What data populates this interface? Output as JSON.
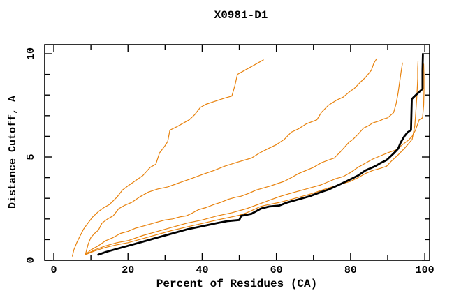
{
  "chart_data": {
    "type": "line",
    "title": "X0981-D1",
    "xlabel": "Percent of Residues (CA)",
    "ylabel": "Distance Cutoff, A",
    "xlim": [
      -2.45,
      101.3
    ],
    "ylim": [
      0,
      10.44
    ],
    "x_major_ticks": [
      0,
      20,
      40,
      60,
      80,
      100
    ],
    "x_minor_ticks": [
      10,
      30,
      50,
      70,
      90
    ],
    "y_major_ticks": [
      0,
      5,
      10
    ],
    "y_minor_ticks": [
      1,
      2,
      3,
      4,
      6,
      7,
      8,
      9
    ],
    "grid": false,
    "legend": "none",
    "background_color": "#ffffff",
    "axis_color": "#000000",
    "orange_color": "#e8820d",
    "black_color": "#000000",
    "series": [
      {
        "name": "orange-curve-1",
        "color": "#e8820d",
        "width": 1.2,
        "points": [
          [
            5,
            0.2
          ],
          [
            5.4,
            0.5
          ],
          [
            6.2,
            0.85
          ],
          [
            7,
            1.15
          ],
          [
            8,
            1.5
          ],
          [
            9,
            1.75
          ],
          [
            10.5,
            2.1
          ],
          [
            12,
            2.35
          ],
          [
            13.5,
            2.55
          ],
          [
            15,
            2.7
          ],
          [
            17,
            3.05
          ],
          [
            18.5,
            3.4
          ],
          [
            20,
            3.6
          ],
          [
            22,
            3.85
          ],
          [
            24,
            4.1
          ],
          [
            26,
            4.5
          ],
          [
            27.5,
            4.65
          ],
          [
            28.5,
            5.2
          ],
          [
            30,
            5.55
          ],
          [
            30.7,
            5.75
          ],
          [
            31.3,
            6.3
          ],
          [
            33,
            6.45
          ],
          [
            34.5,
            6.6
          ],
          [
            36.5,
            6.8
          ],
          [
            38,
            7.05
          ],
          [
            39.5,
            7.4
          ],
          [
            41,
            7.55
          ],
          [
            43.5,
            7.7
          ],
          [
            46,
            7.85
          ],
          [
            48,
            7.95
          ],
          [
            48.8,
            8.45
          ],
          [
            49.5,
            9.0
          ],
          [
            51.5,
            9.2
          ],
          [
            53.5,
            9.4
          ],
          [
            55,
            9.55
          ],
          [
            56.5,
            9.7
          ]
        ]
      },
      {
        "name": "orange-curve-2",
        "color": "#e8820d",
        "width": 1.2,
        "points": [
          [
            8.5,
            0.27
          ],
          [
            9.3,
            0.8
          ],
          [
            10,
            1.1
          ],
          [
            11,
            1.3
          ],
          [
            12,
            1.45
          ],
          [
            13,
            1.8
          ],
          [
            14.5,
            2.0
          ],
          [
            16,
            2.15
          ],
          [
            17.5,
            2.5
          ],
          [
            19,
            2.65
          ],
          [
            21,
            2.8
          ],
          [
            23,
            3.05
          ],
          [
            25.5,
            3.3
          ],
          [
            28,
            3.45
          ],
          [
            30.7,
            3.55
          ],
          [
            33,
            3.7
          ],
          [
            37,
            3.95
          ],
          [
            40,
            4.15
          ],
          [
            43.2,
            4.35
          ],
          [
            46,
            4.55
          ],
          [
            49.5,
            4.75
          ],
          [
            53.3,
            4.95
          ],
          [
            55.5,
            5.2
          ],
          [
            57.7,
            5.4
          ],
          [
            60,
            5.6
          ],
          [
            62.1,
            5.85
          ],
          [
            64,
            6.2
          ],
          [
            65.8,
            6.35
          ],
          [
            68,
            6.6
          ],
          [
            70.9,
            6.8
          ],
          [
            72.1,
            7.15
          ],
          [
            74,
            7.5
          ],
          [
            76.2,
            7.75
          ],
          [
            78,
            7.9
          ],
          [
            80,
            8.2
          ],
          [
            80.9,
            8.3
          ],
          [
            82.5,
            8.6
          ],
          [
            84,
            8.85
          ],
          [
            85.6,
            9.2
          ],
          [
            86.3,
            9.55
          ],
          [
            87,
            9.75
          ]
        ]
      },
      {
        "name": "orange-curve-3",
        "color": "#e8820d",
        "width": 1.2,
        "points": [
          [
            8.5,
            0.27
          ],
          [
            10,
            0.5
          ],
          [
            12,
            0.7
          ],
          [
            14,
            0.95
          ],
          [
            16,
            1.1
          ],
          [
            18,
            1.3
          ],
          [
            20,
            1.4
          ],
          [
            22,
            1.55
          ],
          [
            24,
            1.65
          ],
          [
            26,
            1.75
          ],
          [
            28,
            1.85
          ],
          [
            30,
            1.95
          ],
          [
            32,
            2.0
          ],
          [
            34,
            2.1
          ],
          [
            35.7,
            2.15
          ],
          [
            37.5,
            2.3
          ],
          [
            39,
            2.45
          ],
          [
            41,
            2.55
          ],
          [
            43.2,
            2.7
          ],
          [
            45,
            2.8
          ],
          [
            47,
            2.95
          ],
          [
            49,
            3.05
          ],
          [
            50.5,
            3.1
          ],
          [
            52.7,
            3.25
          ],
          [
            54.5,
            3.4
          ],
          [
            56.5,
            3.5
          ],
          [
            58.5,
            3.6
          ],
          [
            60,
            3.7
          ],
          [
            62.1,
            3.82
          ],
          [
            64,
            4.0
          ],
          [
            66,
            4.2
          ],
          [
            68,
            4.35
          ],
          [
            70,
            4.5
          ],
          [
            72.1,
            4.72
          ],
          [
            74,
            4.85
          ],
          [
            75.6,
            4.95
          ],
          [
            77,
            5.2
          ],
          [
            78.5,
            5.5
          ],
          [
            79.5,
            5.7
          ],
          [
            80.6,
            5.85
          ],
          [
            82,
            6.1
          ],
          [
            83.5,
            6.4
          ],
          [
            84.7,
            6.5
          ],
          [
            86,
            6.65
          ],
          [
            87.8,
            6.75
          ],
          [
            89,
            6.85
          ],
          [
            90,
            6.9
          ],
          [
            91.6,
            7.15
          ],
          [
            92.3,
            7.6
          ],
          [
            92.8,
            8.1
          ],
          [
            93.2,
            8.6
          ],
          [
            93.6,
            9.1
          ],
          [
            94,
            9.55
          ]
        ]
      },
      {
        "name": "orange-curve-4",
        "color": "#e8820d",
        "width": 1.2,
        "points": [
          [
            8.5,
            0.27
          ],
          [
            11,
            0.5
          ],
          [
            14,
            0.7
          ],
          [
            17,
            0.85
          ],
          [
            20,
            0.95
          ],
          [
            24,
            1.2
          ],
          [
            28,
            1.4
          ],
          [
            32,
            1.6
          ],
          [
            36,
            1.8
          ],
          [
            40,
            1.95
          ],
          [
            44,
            2.15
          ],
          [
            48,
            2.3
          ],
          [
            52,
            2.5
          ],
          [
            55.8,
            2.75
          ],
          [
            58,
            2.9
          ],
          [
            60.8,
            3.08
          ],
          [
            63,
            3.2
          ],
          [
            65,
            3.3
          ],
          [
            68,
            3.45
          ],
          [
            70,
            3.55
          ],
          [
            72,
            3.65
          ],
          [
            74,
            3.8
          ],
          [
            76,
            3.95
          ],
          [
            78,
            4.05
          ],
          [
            80,
            4.25
          ],
          [
            82,
            4.5
          ],
          [
            84,
            4.7
          ],
          [
            86,
            4.9
          ],
          [
            88,
            5.05
          ],
          [
            90,
            5.2
          ],
          [
            92.3,
            5.35
          ],
          [
            94,
            5.6
          ],
          [
            95.5,
            5.8
          ],
          [
            96.6,
            6.0
          ],
          [
            97.5,
            6.3
          ],
          [
            98.5,
            6.8
          ],
          [
            99.4,
            6.9
          ],
          [
            99.7,
            7.5
          ],
          [
            99.8,
            8.2
          ],
          [
            99.8,
            8.9
          ],
          [
            99.7,
            9.5
          ]
        ]
      },
      {
        "name": "orange-curve-5",
        "color": "#e8820d",
        "width": 1.2,
        "points": [
          [
            8.5,
            0.27
          ],
          [
            11,
            0.45
          ],
          [
            14,
            0.62
          ],
          [
            17,
            0.75
          ],
          [
            20,
            0.85
          ],
          [
            24,
            1.05
          ],
          [
            28,
            1.25
          ],
          [
            32,
            1.45
          ],
          [
            36,
            1.62
          ],
          [
            40,
            1.78
          ],
          [
            44,
            1.95
          ],
          [
            48,
            2.1
          ],
          [
            50,
            2.18
          ],
          [
            52,
            2.3
          ],
          [
            55.8,
            2.61
          ],
          [
            58,
            2.7
          ],
          [
            60.8,
            2.8
          ],
          [
            63,
            2.9
          ],
          [
            65,
            3.0
          ],
          [
            68,
            3.15
          ],
          [
            70,
            3.25
          ],
          [
            72,
            3.38
          ],
          [
            74,
            3.5
          ],
          [
            76.8,
            3.65
          ],
          [
            78,
            3.72
          ],
          [
            80,
            3.82
          ],
          [
            82,
            4.0
          ],
          [
            84,
            4.2
          ],
          [
            86,
            4.35
          ],
          [
            88,
            4.45
          ],
          [
            89.7,
            4.55
          ],
          [
            91,
            4.8
          ],
          [
            92.8,
            5.1
          ],
          [
            94.7,
            5.45
          ],
          [
            96.6,
            5.85
          ],
          [
            97.3,
            6.5
          ],
          [
            97.6,
            7.2
          ],
          [
            97.9,
            8.0
          ],
          [
            98.1,
            8.8
          ],
          [
            98.1,
            9.3
          ],
          [
            98.2,
            9.65
          ]
        ]
      },
      {
        "name": "black-curve-main",
        "color": "#000000",
        "width": 2.8,
        "points": [
          [
            12,
            0.27
          ],
          [
            14,
            0.4
          ],
          [
            17,
            0.55
          ],
          [
            20,
            0.7
          ],
          [
            24,
            0.9
          ],
          [
            28,
            1.1
          ],
          [
            32,
            1.3
          ],
          [
            36,
            1.5
          ],
          [
            40,
            1.65
          ],
          [
            44,
            1.8
          ],
          [
            47,
            1.9
          ],
          [
            50,
            1.95
          ],
          [
            50.5,
            2.15
          ],
          [
            53.3,
            2.25
          ],
          [
            55.8,
            2.5
          ],
          [
            58,
            2.6
          ],
          [
            60.8,
            2.65
          ],
          [
            63,
            2.8
          ],
          [
            66,
            2.95
          ],
          [
            69,
            3.1
          ],
          [
            72,
            3.3
          ],
          [
            74,
            3.42
          ],
          [
            76.8,
            3.65
          ],
          [
            78,
            3.75
          ],
          [
            80.3,
            3.95
          ],
          [
            82,
            4.1
          ],
          [
            84,
            4.35
          ],
          [
            86.6,
            4.55
          ],
          [
            88,
            4.7
          ],
          [
            89.7,
            4.85
          ],
          [
            91.6,
            5.17
          ],
          [
            92.8,
            5.4
          ],
          [
            93.5,
            5.7
          ],
          [
            94.5,
            6.0
          ],
          [
            95.4,
            6.2
          ],
          [
            96.3,
            6.3
          ],
          [
            96.5,
            7.8
          ],
          [
            97,
            7.9
          ],
          [
            99.4,
            8.3
          ],
          [
            99.4,
            9.2
          ],
          [
            99.5,
            9.95
          ]
        ]
      }
    ]
  }
}
